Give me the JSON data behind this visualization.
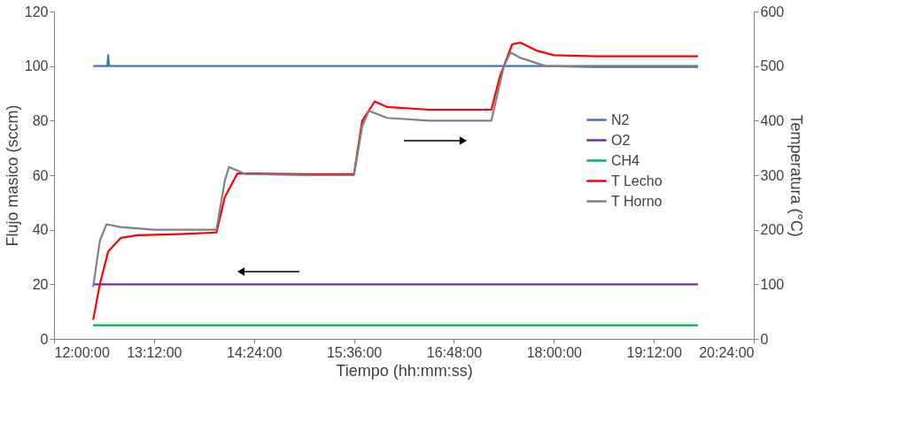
{
  "chart_data": {
    "type": "line",
    "xlabel": "Tiempo (hh:mm:ss)",
    "ylabel": "Flujo masico (sccm)",
    "y2label": "Temperatura (°C)",
    "xlim": [
      12.0,
      20.4
    ],
    "xticks": [
      {
        "value": 12.0,
        "label": "12:00:00"
      },
      {
        "value": 13.2,
        "label": "13:12:00"
      },
      {
        "value": 14.4,
        "label": "14:24:00"
      },
      {
        "value": 15.6,
        "label": "15:36:00"
      },
      {
        "value": 16.8,
        "label": "16:48:00"
      },
      {
        "value": 18.0,
        "label": "18:00:00"
      },
      {
        "value": 19.2,
        "label": "19:12:00"
      },
      {
        "value": 20.4,
        "label": "20:24:00"
      }
    ],
    "ylim": [
      0,
      120
    ],
    "yticks": [
      0,
      20,
      40,
      60,
      80,
      100,
      120
    ],
    "y2lim": [
      0,
      600
    ],
    "y2ticks": [
      0,
      100,
      200,
      300,
      400,
      500,
      600
    ],
    "legend": "right",
    "grid": false,
    "series": [
      {
        "name": "N2",
        "color": "#4472c4",
        "x": [
          12.47,
          12.64,
          12.65,
          12.66,
          12.67,
          19.73
        ],
        "values": [
          100,
          100,
          104,
          100,
          100,
          100
        ]
      },
      {
        "name": "O2",
        "color": "#7030a0",
        "x": [
          12.47,
          19.73
        ],
        "values": [
          20,
          20
        ]
      },
      {
        "name": "CH4",
        "color": "#00b050",
        "x": [
          12.47,
          19.73
        ],
        "values": [
          5,
          5
        ]
      },
      {
        "name": "T Lecho",
        "color": "#ff0000",
        "axis": "y2",
        "x": [
          12.47,
          12.55,
          12.65,
          12.8,
          13.0,
          13.5,
          13.95,
          14.05,
          14.2,
          14.4,
          15.0,
          15.6,
          15.7,
          15.85,
          16.0,
          16.5,
          17.25,
          17.35,
          17.5,
          17.6,
          17.8,
          18.0,
          18.5,
          19.73
        ],
        "values": [
          35,
          100,
          160,
          185,
          190,
          192,
          195,
          260,
          303,
          303,
          302,
          302,
          400,
          435,
          425,
          420,
          420,
          480,
          540,
          543,
          528,
          520,
          518,
          518
        ]
      },
      {
        "name": "T Horno",
        "color": "#808080",
        "axis": "y2",
        "x": [
          12.47,
          12.55,
          12.63,
          12.8,
          13.2,
          13.95,
          14.05,
          14.1,
          14.3,
          15.0,
          15.6,
          15.7,
          15.78,
          16.0,
          16.5,
          17.25,
          17.4,
          17.48,
          17.6,
          17.9,
          18.5,
          19.73
        ],
        "values": [
          95,
          180,
          210,
          205,
          200,
          200,
          290,
          315,
          302,
          300,
          300,
          390,
          418,
          405,
          400,
          400,
          500,
          525,
          515,
          500,
          498,
          498
        ]
      }
    ]
  }
}
